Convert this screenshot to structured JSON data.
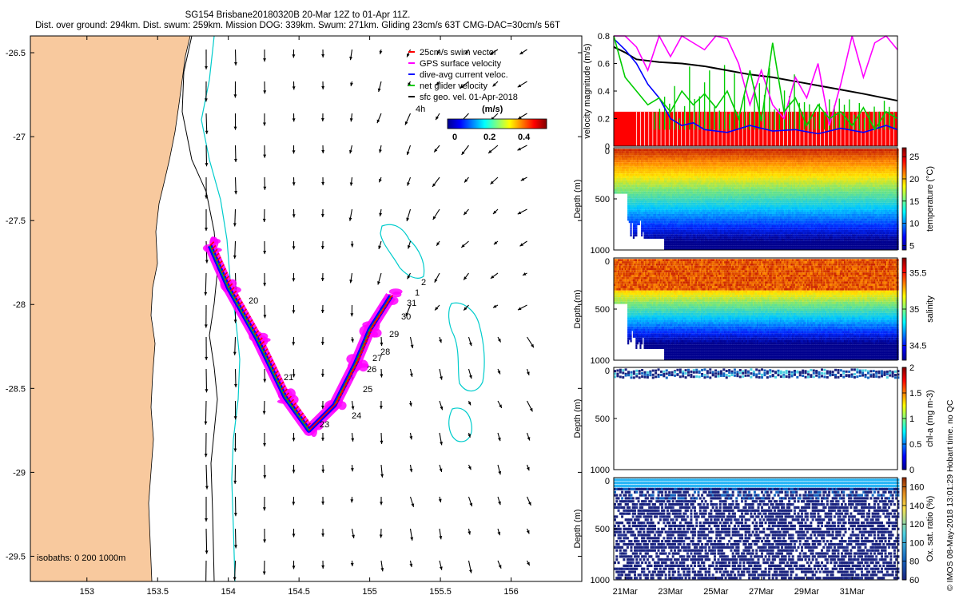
{
  "header": {
    "line1": "SG154 Brisbane20180320B 20-Mar 12Z to 01-Apr 11Z.",
    "line2": "Dist. over ground: 294km. Dist. swum: 259km. Mission DOG: 339km. Swum: 271km. Gliding 23cm/s 63T CMG-DAC=30cm/s 56T"
  },
  "credit": "© IMOS 08-May-2018 13:01:29 Hobart time. no QC",
  "colors": {
    "land": "#F8C99E",
    "isobath_shallow": "#00CCCC",
    "isobath_deep": "#000000",
    "swim_vector": "#FF0000",
    "gps_velocity": "#FF00FF",
    "dac": "#0000FF",
    "net_velocity": "#00CC00",
    "sfc_geo": "#000000"
  },
  "map": {
    "legend": [
      {
        "label": "25cm/s swim vector",
        "color": "#FF0000"
      },
      {
        "label": "GPS surface velocity",
        "color": "#FF00FF"
      },
      {
        "label": "dive-avg current veloc.",
        "color": "#0000FF"
      },
      {
        "label": "net glider velocity",
        "color": "#00CC00"
      },
      {
        "label": "sfc geo. vel. 01-Apr-2018",
        "color": "#000000"
      }
    ],
    "legend_extra": "4h",
    "colorbar_title": "(m/s)",
    "colorbar_ticks": [
      "0",
      "0.2",
      "0.4"
    ],
    "isobaths_label": "isobaths: 0   200  1000m",
    "day_labels": [
      "1",
      "2",
      "20",
      "21",
      "23",
      "24",
      "25",
      "26",
      "27",
      "28",
      "29",
      "30",
      "31"
    ]
  },
  "chart_data": [
    {
      "type": "line",
      "title": "",
      "xlabel": "",
      "ylabel": "",
      "xlim": [
        152.6,
        156.5
      ],
      "ylim": [
        -29.65,
        -26.4
      ],
      "x_ticks": [
        "153",
        "153.5",
        "154",
        "154.5",
        "155",
        "155.5",
        "156"
      ],
      "y_ticks": [
        "-26.5",
        "-27",
        "-27.5",
        "-28",
        "-28.5",
        "-29",
        "-29.5"
      ],
      "series": [
        {
          "name": "25cm/s swim vector",
          "lon": [
            153.87,
            154.0,
            154.2,
            154.4,
            154.57,
            154.75,
            154.9,
            155.0,
            155.15
          ],
          "lat": [
            -27.65,
            -27.9,
            -28.2,
            -28.55,
            -28.75,
            -28.6,
            -28.35,
            -28.15,
            -27.95
          ]
        }
      ]
    },
    {
      "type": "line",
      "title": "",
      "xlabel": "",
      "ylabel": "velocity magnitude (m/s)",
      "ylim": [
        0,
        0.8
      ],
      "y_ticks": [
        "0",
        "0.2",
        "0.4",
        "0.6",
        "0.8"
      ],
      "series": [
        {
          "name": "sfc geo. vel.",
          "x": [
            0,
            0.5,
            1,
            2,
            3,
            4,
            5,
            6,
            7,
            8,
            9,
            10,
            11,
            12.5
          ],
          "values": [
            0.72,
            0.68,
            0.63,
            0.61,
            0.6,
            0.58,
            0.55,
            0.52,
            0.5,
            0.47,
            0.44,
            0.41,
            0.38,
            0.33
          ]
        },
        {
          "name": "dive-avg current veloc.",
          "x": [
            0,
            0.5,
            1,
            1.5,
            2,
            2.5,
            3,
            3.5,
            4,
            5,
            6,
            7,
            8,
            9,
            10,
            11,
            12,
            12.5
          ],
          "values": [
            0.78,
            0.7,
            0.6,
            0.45,
            0.35,
            0.2,
            0.15,
            0.17,
            0.12,
            0.1,
            0.15,
            0.11,
            0.12,
            0.09,
            0.13,
            0.1,
            0.15,
            0.12
          ]
        },
        {
          "name": "GPS surface velocity",
          "x": [
            0,
            0.5,
            1,
            1.5,
            2,
            2.5,
            3,
            3.5,
            4,
            4.5,
            5,
            5.5,
            6,
            6.5,
            7,
            7.5,
            8,
            8.5,
            9,
            9.5,
            10,
            10.5,
            11,
            11.5,
            12,
            12.5
          ],
          "values": [
            0.8,
            0.8,
            0.72,
            0.55,
            0.8,
            0.65,
            0.8,
            0.75,
            0.7,
            0.8,
            0.78,
            0.6,
            0.3,
            0.55,
            0.3,
            0.2,
            0.5,
            0.35,
            0.6,
            0.15,
            0.45,
            0.8,
            0.5,
            0.75,
            0.8,
            0.7
          ]
        },
        {
          "name": "net glider velocity",
          "x": [
            0,
            0.5,
            1,
            1.5,
            2,
            2.5,
            3,
            3.5,
            4,
            4.5,
            5,
            5.5,
            6,
            6.5,
            7,
            7.5,
            8,
            8.5,
            9,
            9.5,
            10,
            10.5,
            11,
            11.5,
            12,
            12.5
          ],
          "values": [
            0.8,
            0.5,
            0.4,
            0.3,
            0.35,
            0.25,
            0.4,
            0.3,
            0.38,
            0.28,
            0.4,
            0.2,
            0.55,
            0.18,
            0.75,
            0.25,
            0.35,
            0.15,
            0.3,
            0.2,
            0.25,
            0.15,
            0.28,
            0.12,
            0.25,
            0.2
          ]
        },
        {
          "name": "25cm/s swim vector",
          "x": [
            0,
            12.5
          ],
          "values": [
            0.25,
            0.25
          ]
        }
      ]
    },
    {
      "type": "heatmap",
      "title": "",
      "ylabel": "Depth (m)",
      "colorbar_label": "temperature (°C)",
      "y_ticks": [
        "0",
        "500",
        "1000"
      ],
      "colorbar_ticks": [
        "5",
        "10",
        "15",
        "20",
        "25"
      ],
      "value_range": [
        4,
        27
      ]
    },
    {
      "type": "heatmap",
      "title": "",
      "ylabel": "Depth (m)",
      "colorbar_label": "salinity",
      "y_ticks": [
        "0",
        "500",
        "1000"
      ],
      "colorbar_ticks": [
        "34.5",
        "35",
        "35.5"
      ],
      "value_range": [
        34.3,
        35.7
      ]
    },
    {
      "type": "heatmap",
      "title": "",
      "ylabel": "Depth (m)",
      "colorbar_label": "chl-a (mg m-3)",
      "y_ticks": [
        "0",
        "500",
        "1000"
      ],
      "colorbar_ticks": [
        "0",
        "0.5",
        "1",
        "1.5",
        "2"
      ],
      "value_range": [
        0,
        2
      ]
    },
    {
      "type": "heatmap",
      "title": "",
      "ylabel": "Depth (m)",
      "colorbar_label": "Ox. sat. ratio (%)",
      "y_ticks": [
        "0",
        "500",
        "1000"
      ],
      "colorbar_ticks": [
        "60",
        "80",
        "100",
        "120",
        "140",
        "160"
      ],
      "value_range": [
        60,
        170
      ],
      "x_ticks": [
        "21Mar",
        "23Mar",
        "25Mar",
        "27Mar",
        "29Mar",
        "31Mar"
      ]
    }
  ]
}
